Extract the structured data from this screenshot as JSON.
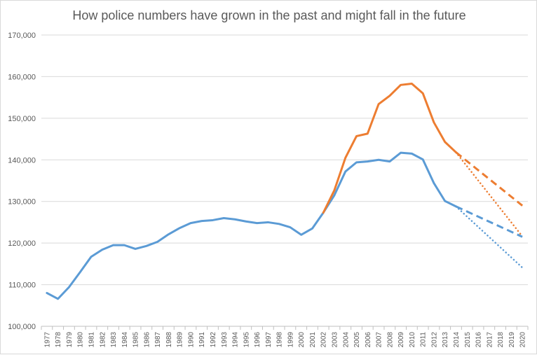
{
  "chart_data": {
    "type": "line",
    "title": "How police numbers have grown in the past and might fall in the future",
    "xlabel": "",
    "ylabel": "",
    "ylim": [
      100000,
      170000
    ],
    "y_ticks": [
      100000,
      110000,
      120000,
      130000,
      140000,
      150000,
      160000,
      170000
    ],
    "y_tick_labels": [
      "100,000",
      "110,000",
      "120,000",
      "130,000",
      "140,000",
      "150,000",
      "160,000",
      "170,000"
    ],
    "categories": [
      "1977",
      "1978",
      "1979",
      "1980",
      "1981",
      "1982",
      "1983",
      "1984",
      "1985",
      "1986",
      "1987",
      "1988",
      "1989",
      "1990",
      "1991",
      "1992",
      "1993",
      "1994",
      "1995",
      "1996",
      "1997",
      "1998",
      "1999",
      "2000",
      "2001",
      "2002",
      "2003",
      "2004",
      "2005",
      "2006",
      "2007",
      "2008",
      "2009",
      "2010",
      "2011",
      "2012",
      "2013",
      "2014",
      "2015",
      "2016",
      "2017",
      "2018",
      "2019",
      "2020"
    ],
    "grid": true,
    "legend": "none",
    "series": [
      {
        "color": "#5b9bd5",
        "style": "solid",
        "x": [
          "1977",
          "1978",
          "1979",
          "1980",
          "1981",
          "1982",
          "1983",
          "1984",
          "1985",
          "1986",
          "1987",
          "1988",
          "1989",
          "1990",
          "1991",
          "1992",
          "1993",
          "1994",
          "1995",
          "1996",
          "1997",
          "1998",
          "1999",
          "2000",
          "2001",
          "2002",
          "2003",
          "2004",
          "2005",
          "2006",
          "2007",
          "2008",
          "2009",
          "2010",
          "2011",
          "2012",
          "2013",
          "2014"
        ],
        "values": [
          108000,
          106600,
          109400,
          113000,
          116700,
          118400,
          119500,
          119500,
          118600,
          119300,
          120300,
          122100,
          123600,
          124800,
          125300,
          125500,
          126000,
          125700,
          125200,
          124800,
          125000,
          124600,
          123800,
          122000,
          123500,
          127300,
          131500,
          137200,
          139400,
          139600,
          140000,
          139600,
          141700,
          141500,
          140100,
          134400,
          130100,
          128800
        ]
      },
      {
        "color": "#ed7d31",
        "style": "solid",
        "x": [
          "2002",
          "2003",
          "2004",
          "2005",
          "2006",
          "2007",
          "2008",
          "2009",
          "2010",
          "2011",
          "2012",
          "2013",
          "2014"
        ],
        "values": [
          127300,
          132700,
          140500,
          145700,
          146300,
          153400,
          155400,
          158000,
          158300,
          156000,
          149000,
          144300,
          141800
        ]
      },
      {
        "color": "#5b9bd5",
        "style": "dashed",
        "x": [
          "2014",
          "2020"
        ],
        "values": [
          128800,
          121500
        ]
      },
      {
        "color": "#5b9bd5",
        "style": "dotted",
        "x": [
          "2014",
          "2020"
        ],
        "values": [
          128800,
          114100
        ]
      },
      {
        "color": "#ed7d31",
        "style": "dashed",
        "x": [
          "2014",
          "2020"
        ],
        "values": [
          141800,
          129000
        ]
      },
      {
        "color": "#ed7d31",
        "style": "dotted",
        "x": [
          "2014",
          "2020"
        ],
        "values": [
          141800,
          121600
        ]
      }
    ]
  }
}
